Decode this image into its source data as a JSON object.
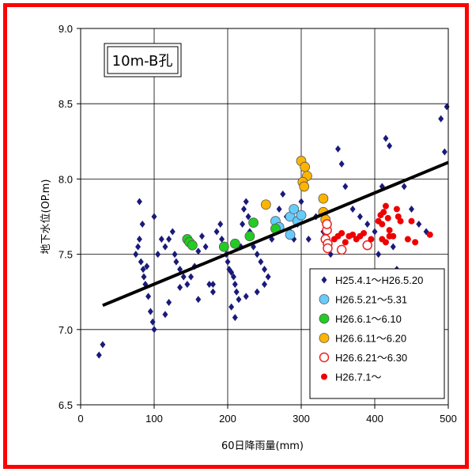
{
  "chart_data": {
    "type": "scatter",
    "title": "10m-B孔",
    "xlabel": "60日降雨量(mm)",
    "ylabel": "地下水位(OP.m)",
    "xlim": [
      0,
      500
    ],
    "ylim": [
      6.5,
      9.0
    ],
    "x_ticks": [
      "0",
      "100",
      "200",
      "300",
      "400",
      "500"
    ],
    "y_ticks": [
      "6.5",
      "7.0",
      "7.5",
      "8.0",
      "8.5",
      "9.0"
    ],
    "grid": true,
    "legend_position": "bottom-right",
    "trendline": {
      "x": [
        30,
        500
      ],
      "y": [
        7.16,
        8.11
      ],
      "color": "#000000"
    },
    "series": [
      {
        "name": "H25.4.1～H26.5.20",
        "marker": "diamond",
        "color": "#1a1a7a",
        "points": [
          [
            25,
            6.83
          ],
          [
            30,
            6.9
          ],
          [
            75,
            7.5
          ],
          [
            78,
            7.55
          ],
          [
            80,
            7.6
          ],
          [
            80,
            7.85
          ],
          [
            82,
            7.45
          ],
          [
            84,
            7.7
          ],
          [
            85,
            7.4
          ],
          [
            86,
            7.35
          ],
          [
            88,
            7.3
          ],
          [
            90,
            7.42
          ],
          [
            92,
            7.22
          ],
          [
            95,
            7.12
          ],
          [
            100,
            7.75
          ],
          [
            105,
            7.5
          ],
          [
            110,
            7.6
          ],
          [
            115,
            7.55
          ],
          [
            120,
            7.6
          ],
          [
            125,
            7.65
          ],
          [
            128,
            7.5
          ],
          [
            130,
            7.45
          ],
          [
            135,
            7.4
          ],
          [
            140,
            7.35
          ],
          [
            145,
            7.3
          ],
          [
            150,
            7.35
          ],
          [
            155,
            7.42
          ],
          [
            160,
            7.52
          ],
          [
            165,
            7.62
          ],
          [
            170,
            7.55
          ],
          [
            175,
            7.3
          ],
          [
            180,
            7.25
          ],
          [
            185,
            7.65
          ],
          [
            190,
            7.7
          ],
          [
            192,
            7.6
          ],
          [
            195,
            7.55
          ],
          [
            198,
            7.5
          ],
          [
            200,
            7.45
          ],
          [
            202,
            7.4
          ],
          [
            205,
            7.38
          ],
          [
            208,
            7.35
          ],
          [
            210,
            7.3
          ],
          [
            212,
            7.25
          ],
          [
            215,
            7.2
          ],
          [
            218,
            7.55
          ],
          [
            220,
            7.7
          ],
          [
            222,
            7.8
          ],
          [
            225,
            7.85
          ],
          [
            228,
            7.75
          ],
          [
            230,
            7.65
          ],
          [
            235,
            7.55
          ],
          [
            240,
            7.5
          ],
          [
            245,
            7.45
          ],
          [
            250,
            7.4
          ],
          [
            255,
            7.35
          ],
          [
            260,
            7.6
          ],
          [
            265,
            7.7
          ],
          [
            270,
            7.8
          ],
          [
            275,
            7.9
          ],
          [
            280,
            7.75
          ],
          [
            285,
            7.65
          ],
          [
            290,
            7.6
          ],
          [
            295,
            7.7
          ],
          [
            300,
            7.85
          ],
          [
            310,
            7.6
          ],
          [
            320,
            7.75
          ],
          [
            330,
            7.65
          ],
          [
            340,
            7.5
          ],
          [
            350,
            8.2
          ],
          [
            355,
            8.1
          ],
          [
            360,
            7.95
          ],
          [
            370,
            7.8
          ],
          [
            380,
            7.75
          ],
          [
            390,
            7.7
          ],
          [
            400,
            7.65
          ],
          [
            405,
            7.5
          ],
          [
            410,
            7.95
          ],
          [
            415,
            8.27
          ],
          [
            420,
            8.22
          ],
          [
            425,
            7.55
          ],
          [
            430,
            7.4
          ],
          [
            440,
            7.95
          ],
          [
            450,
            7.8
          ],
          [
            460,
            7.7
          ],
          [
            470,
            7.65
          ],
          [
            490,
            8.4
          ],
          [
            498,
            8.48
          ],
          [
            495,
            8.18
          ],
          [
            100,
            7.0
          ],
          [
            98,
            7.05
          ],
          [
            115,
            7.1
          ],
          [
            120,
            7.18
          ],
          [
            135,
            7.28
          ],
          [
            160,
            7.2
          ],
          [
            180,
            7.3
          ],
          [
            205,
            7.15
          ],
          [
            210,
            7.08
          ],
          [
            225,
            7.22
          ],
          [
            240,
            7.25
          ],
          [
            250,
            7.3
          ]
        ]
      },
      {
        "name": "H26.5.21～5.31",
        "marker": "circle-filled",
        "color": "#66ccff",
        "points": [
          [
            265,
            7.72
          ],
          [
            270,
            7.68
          ],
          [
            285,
            7.75
          ],
          [
            290,
            7.8
          ],
          [
            295,
            7.72
          ],
          [
            300,
            7.76
          ],
          [
            285,
            7.63
          ]
        ]
      },
      {
        "name": "H26.6.1～6.10",
        "marker": "circle-filled",
        "color": "#22cc22",
        "points": [
          [
            145,
            7.6
          ],
          [
            148,
            7.58
          ],
          [
            152,
            7.56
          ],
          [
            195,
            7.55
          ],
          [
            210,
            7.57
          ],
          [
            230,
            7.62
          ],
          [
            235,
            7.71
          ],
          [
            265,
            7.67
          ]
        ]
      },
      {
        "name": "H26.6.11～6.20",
        "marker": "circle-filled",
        "color": "#ffb400",
        "points": [
          [
            252,
            7.83
          ],
          [
            300,
            8.12
          ],
          [
            305,
            8.08
          ],
          [
            308,
            8.02
          ],
          [
            302,
            7.98
          ],
          [
            304,
            7.95
          ],
          [
            330,
            7.87
          ],
          [
            330,
            7.78
          ],
          [
            333,
            7.73
          ]
        ]
      },
      {
        "name": "H26.6.21～6.30",
        "marker": "circle-open",
        "color": "#ee2222",
        "points": [
          [
            333,
            7.6
          ],
          [
            335,
            7.66
          ],
          [
            335,
            7.7
          ],
          [
            336,
            7.57
          ],
          [
            336,
            7.54
          ],
          [
            355,
            7.53
          ],
          [
            390,
            7.56
          ]
        ]
      },
      {
        "name": "H26.7.1～",
        "marker": "dot",
        "color": "#ee0000",
        "points": [
          [
            345,
            7.6
          ],
          [
            350,
            7.62
          ],
          [
            355,
            7.64
          ],
          [
            360,
            7.58
          ],
          [
            365,
            7.62
          ],
          [
            370,
            7.63
          ],
          [
            375,
            7.6
          ],
          [
            380,
            7.62
          ],
          [
            385,
            7.64
          ],
          [
            395,
            7.6
          ],
          [
            405,
            7.72
          ],
          [
            408,
            7.76
          ],
          [
            410,
            7.7
          ],
          [
            412,
            7.78
          ],
          [
            415,
            7.82
          ],
          [
            418,
            7.74
          ],
          [
            420,
            7.66
          ],
          [
            425,
            7.62
          ],
          [
            430,
            7.8
          ],
          [
            432,
            7.75
          ],
          [
            435,
            7.72
          ],
          [
            410,
            7.6
          ],
          [
            415,
            7.58
          ],
          [
            420,
            7.62
          ],
          [
            450,
            7.72
          ],
          [
            455,
            7.58
          ],
          [
            475,
            7.63
          ],
          [
            445,
            7.6
          ]
        ]
      }
    ]
  }
}
